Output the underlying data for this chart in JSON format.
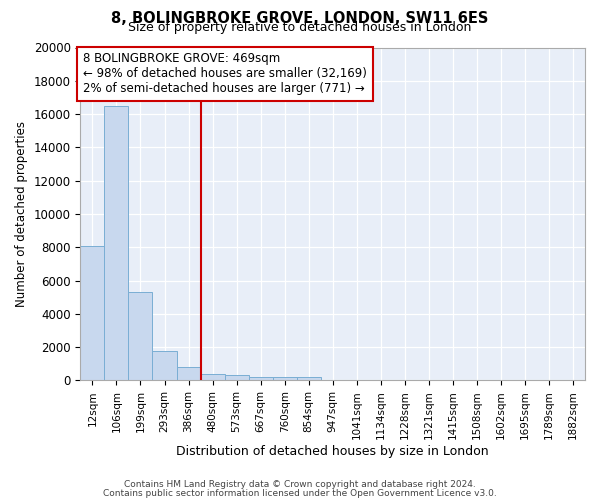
{
  "title1": "8, BOLINGBROKE GROVE, LONDON, SW11 6ES",
  "title2": "Size of property relative to detached houses in London",
  "xlabel": "Distribution of detached houses by size in London",
  "ylabel": "Number of detached properties",
  "bar_labels": [
    "12sqm",
    "106sqm",
    "199sqm",
    "293sqm",
    "386sqm",
    "480sqm",
    "573sqm",
    "667sqm",
    "760sqm",
    "854sqm",
    "947sqm",
    "1041sqm",
    "1134sqm",
    "1228sqm",
    "1321sqm",
    "1415sqm",
    "1508sqm",
    "1602sqm",
    "1695sqm",
    "1789sqm",
    "1882sqm"
  ],
  "bar_values": [
    8100,
    16500,
    5300,
    1800,
    800,
    400,
    300,
    200,
    200,
    200,
    0,
    0,
    0,
    0,
    0,
    0,
    0,
    0,
    0,
    0,
    0
  ],
  "bar_color": "#c8d8ee",
  "bar_edge_color": "#7aaed4",
  "property_line_x": 5.0,
  "annotation_title": "8 BOLINGBROKE GROVE: 469sqm",
  "annotation_line1": "← 98% of detached houses are smaller (32,169)",
  "annotation_line2": "2% of semi-detached houses are larger (771) →",
  "annotation_box_color": "#ffffff",
  "annotation_box_edge_color": "#cc0000",
  "line_color": "#cc0000",
  "ylim": [
    0,
    20000
  ],
  "yticks": [
    0,
    2000,
    4000,
    6000,
    8000,
    10000,
    12000,
    14000,
    16000,
    18000,
    20000
  ],
  "footer1": "Contains HM Land Registry data © Crown copyright and database right 2024.",
  "footer2": "Contains public sector information licensed under the Open Government Licence v3.0.",
  "bg_color": "#ffffff",
  "plot_bg_color": "#e8eef8"
}
